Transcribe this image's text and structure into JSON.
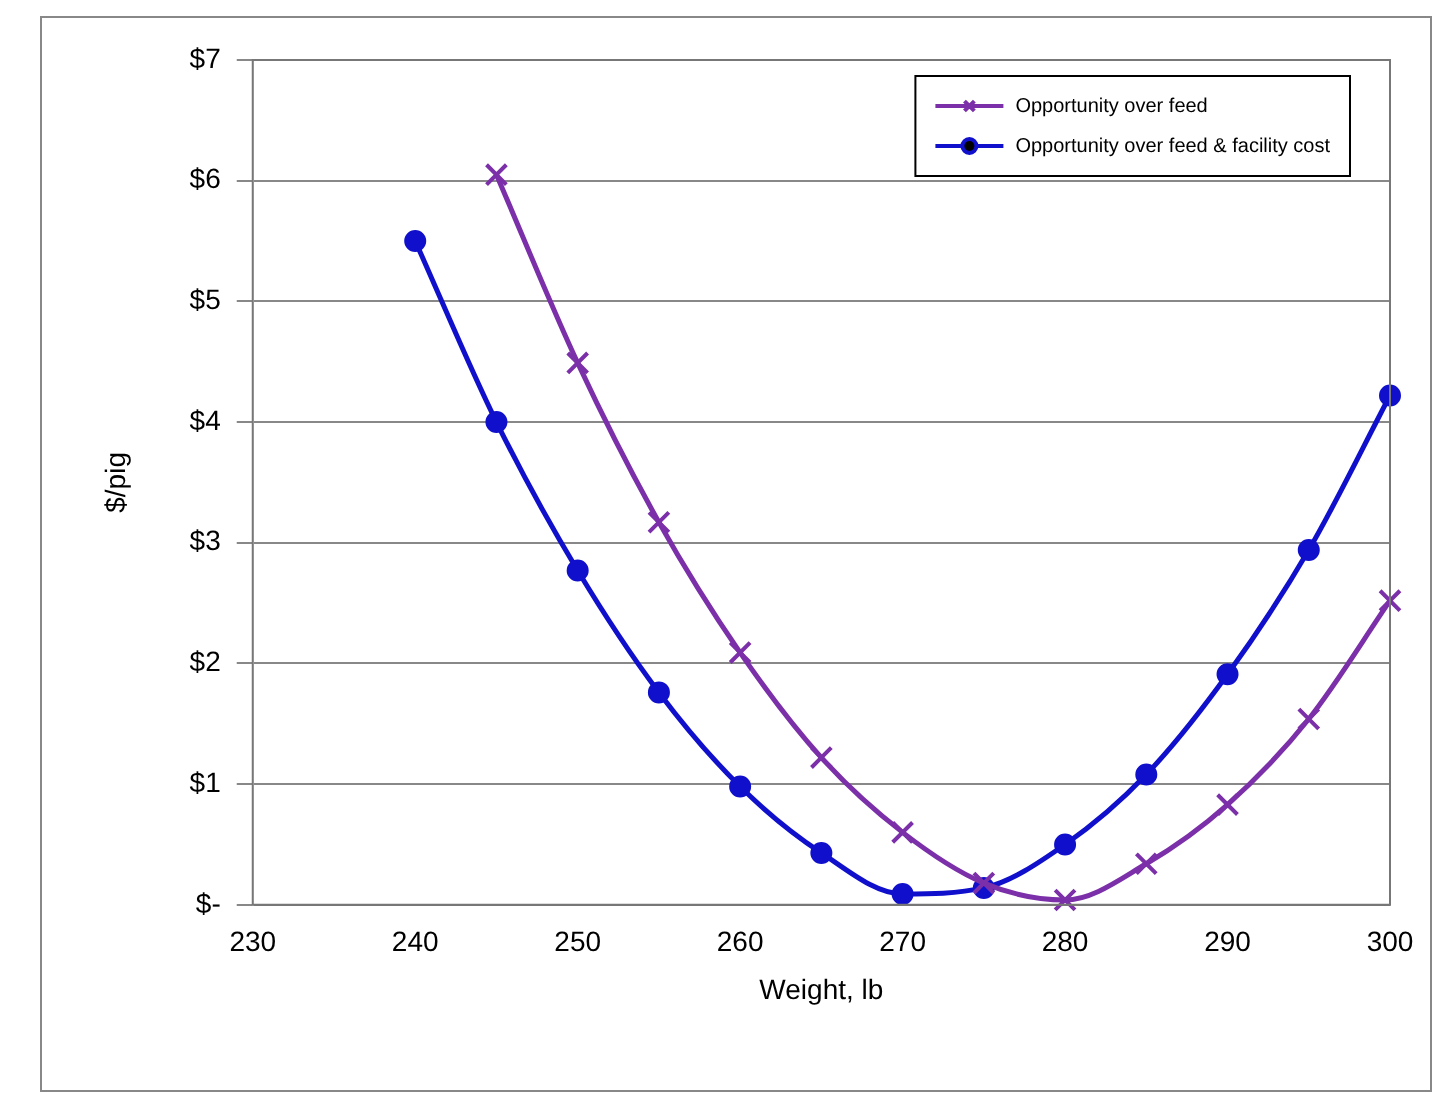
{
  "chart_data": {
    "type": "line",
    "xlabel": "Weight, lb",
    "ylabel": "$/pig",
    "xlim": [
      230,
      300
    ],
    "xticks": [
      230,
      240,
      250,
      260,
      270,
      280,
      290,
      300
    ],
    "ylim": [
      0,
      7
    ],
    "yticks": [
      {
        "value": 0,
        "label": "$-"
      },
      {
        "value": 1,
        "label": "$1"
      },
      {
        "value": 2,
        "label": "$2"
      },
      {
        "value": 3,
        "label": "$3"
      },
      {
        "value": 4,
        "label": "$4"
      },
      {
        "value": 5,
        "label": "$5"
      },
      {
        "value": 6,
        "label": "$6"
      },
      {
        "value": 7,
        "label": "$7"
      }
    ],
    "grid": "y",
    "legend": "top right",
    "series": [
      {
        "name": "Opportunity over feed",
        "color": "#7b2fa8",
        "marker": "cross",
        "x": [
          245,
          250,
          255,
          260,
          265,
          270,
          275,
          280,
          285,
          290,
          295,
          300
        ],
        "values": [
          6.05,
          4.49,
          3.17,
          2.09,
          1.22,
          0.6,
          0.18,
          0.04,
          0.34,
          0.83,
          1.54,
          2.52
        ]
      },
      {
        "name": "Opportunity over feed & facility cost",
        "color": "#1010cc",
        "marker": "circle",
        "x": [
          240,
          245,
          250,
          255,
          260,
          265,
          270,
          275,
          280,
          285,
          290,
          295,
          300
        ],
        "values": [
          5.5,
          4.0,
          2.77,
          1.76,
          0.98,
          0.43,
          0.09,
          0.14,
          0.5,
          1.08,
          1.91,
          2.94,
          4.22
        ]
      }
    ]
  }
}
